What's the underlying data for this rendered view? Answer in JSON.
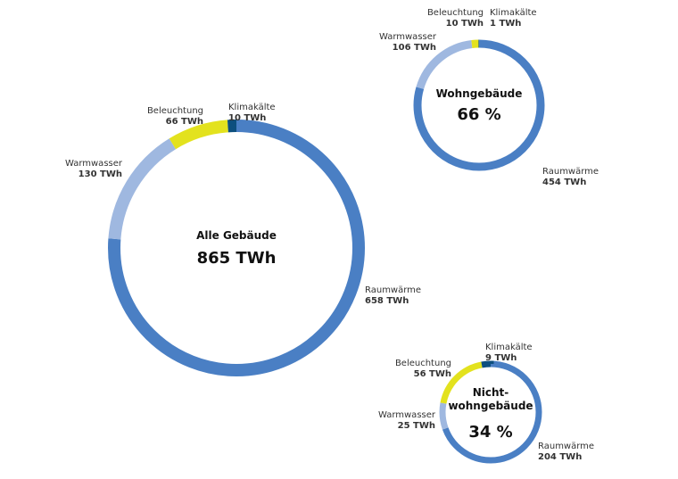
{
  "colors": {
    "Raumwärme": "#4a7fc4",
    "Warmwasser": "#9fb8e0",
    "Beleuchtung": "#e3e21e",
    "Klimakälte": "#0d4f7e"
  },
  "chart_data": [
    {
      "type": "pie",
      "title": "Alle Gebäude",
      "total_label": "865 TWh",
      "categories": [
        "Raumwärme",
        "Warmwasser",
        "Beleuchtung",
        "Klimakälte"
      ],
      "values": [
        658,
        130,
        66,
        10
      ],
      "value_labels": [
        "658 TWh",
        "130 TWh",
        "66 TWh",
        "10 TWh"
      ]
    },
    {
      "type": "pie",
      "title": "Wohngebäude",
      "total_label": "66 %",
      "categories": [
        "Raumwärme",
        "Warmwasser",
        "Beleuchtung",
        "Klimakälte"
      ],
      "values": [
        454,
        106,
        10,
        1
      ],
      "value_labels": [
        "454 TWh",
        "106 TWh",
        "10 TWh",
        "1 TWh"
      ]
    },
    {
      "type": "pie",
      "title": "Nicht-wohngebäude",
      "title_lines": [
        "Nicht-",
        "wohngebäude"
      ],
      "total_label": "34 %",
      "categories": [
        "Raumwärme",
        "Warmwasser",
        "Beleuchtung",
        "Klimakälte"
      ],
      "values": [
        204,
        25,
        56,
        9
      ],
      "value_labels": [
        "204 TWh",
        "25 TWh",
        "56 TWh",
        "9 TWh"
      ]
    }
  ]
}
